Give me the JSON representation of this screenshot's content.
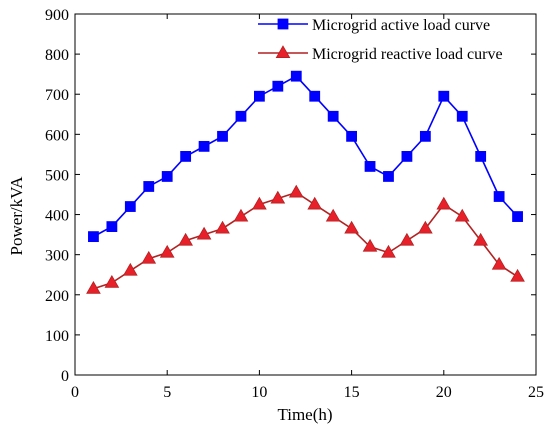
{
  "chart_data": {
    "type": "line",
    "title": "",
    "xlabel": "Time(h)",
    "ylabel": "Power/kVA",
    "xlim": [
      0,
      25
    ],
    "ylim": [
      0,
      900
    ],
    "xticks": [
      0,
      5,
      10,
      15,
      20,
      25
    ],
    "yticks": [
      0,
      100,
      200,
      300,
      400,
      500,
      600,
      700,
      800,
      900
    ],
    "grid": false,
    "legend_position": "top-right",
    "x": [
      1,
      2,
      3,
      4,
      5,
      6,
      7,
      8,
      9,
      10,
      11,
      12,
      13,
      14,
      15,
      16,
      17,
      18,
      19,
      20,
      21,
      22,
      23,
      24
    ],
    "series": [
      {
        "name": "Microgrid active load curve",
        "color": "#0000ff",
        "marker": "square",
        "values": [
          345,
          370,
          420,
          470,
          495,
          545,
          570,
          595,
          645,
          695,
          720,
          745,
          695,
          645,
          595,
          520,
          495,
          545,
          595,
          695,
          645,
          545,
          445,
          395
        ]
      },
      {
        "name": "Microgrid reactive load curve",
        "color": "#b22222",
        "marker_fill": "#e8202a",
        "marker": "triangle",
        "values": [
          215,
          230,
          260,
          290,
          305,
          335,
          350,
          365,
          395,
          425,
          440,
          455,
          425,
          395,
          365,
          320,
          305,
          335,
          365,
          425,
          395,
          335,
          275,
          245
        ]
      }
    ]
  }
}
